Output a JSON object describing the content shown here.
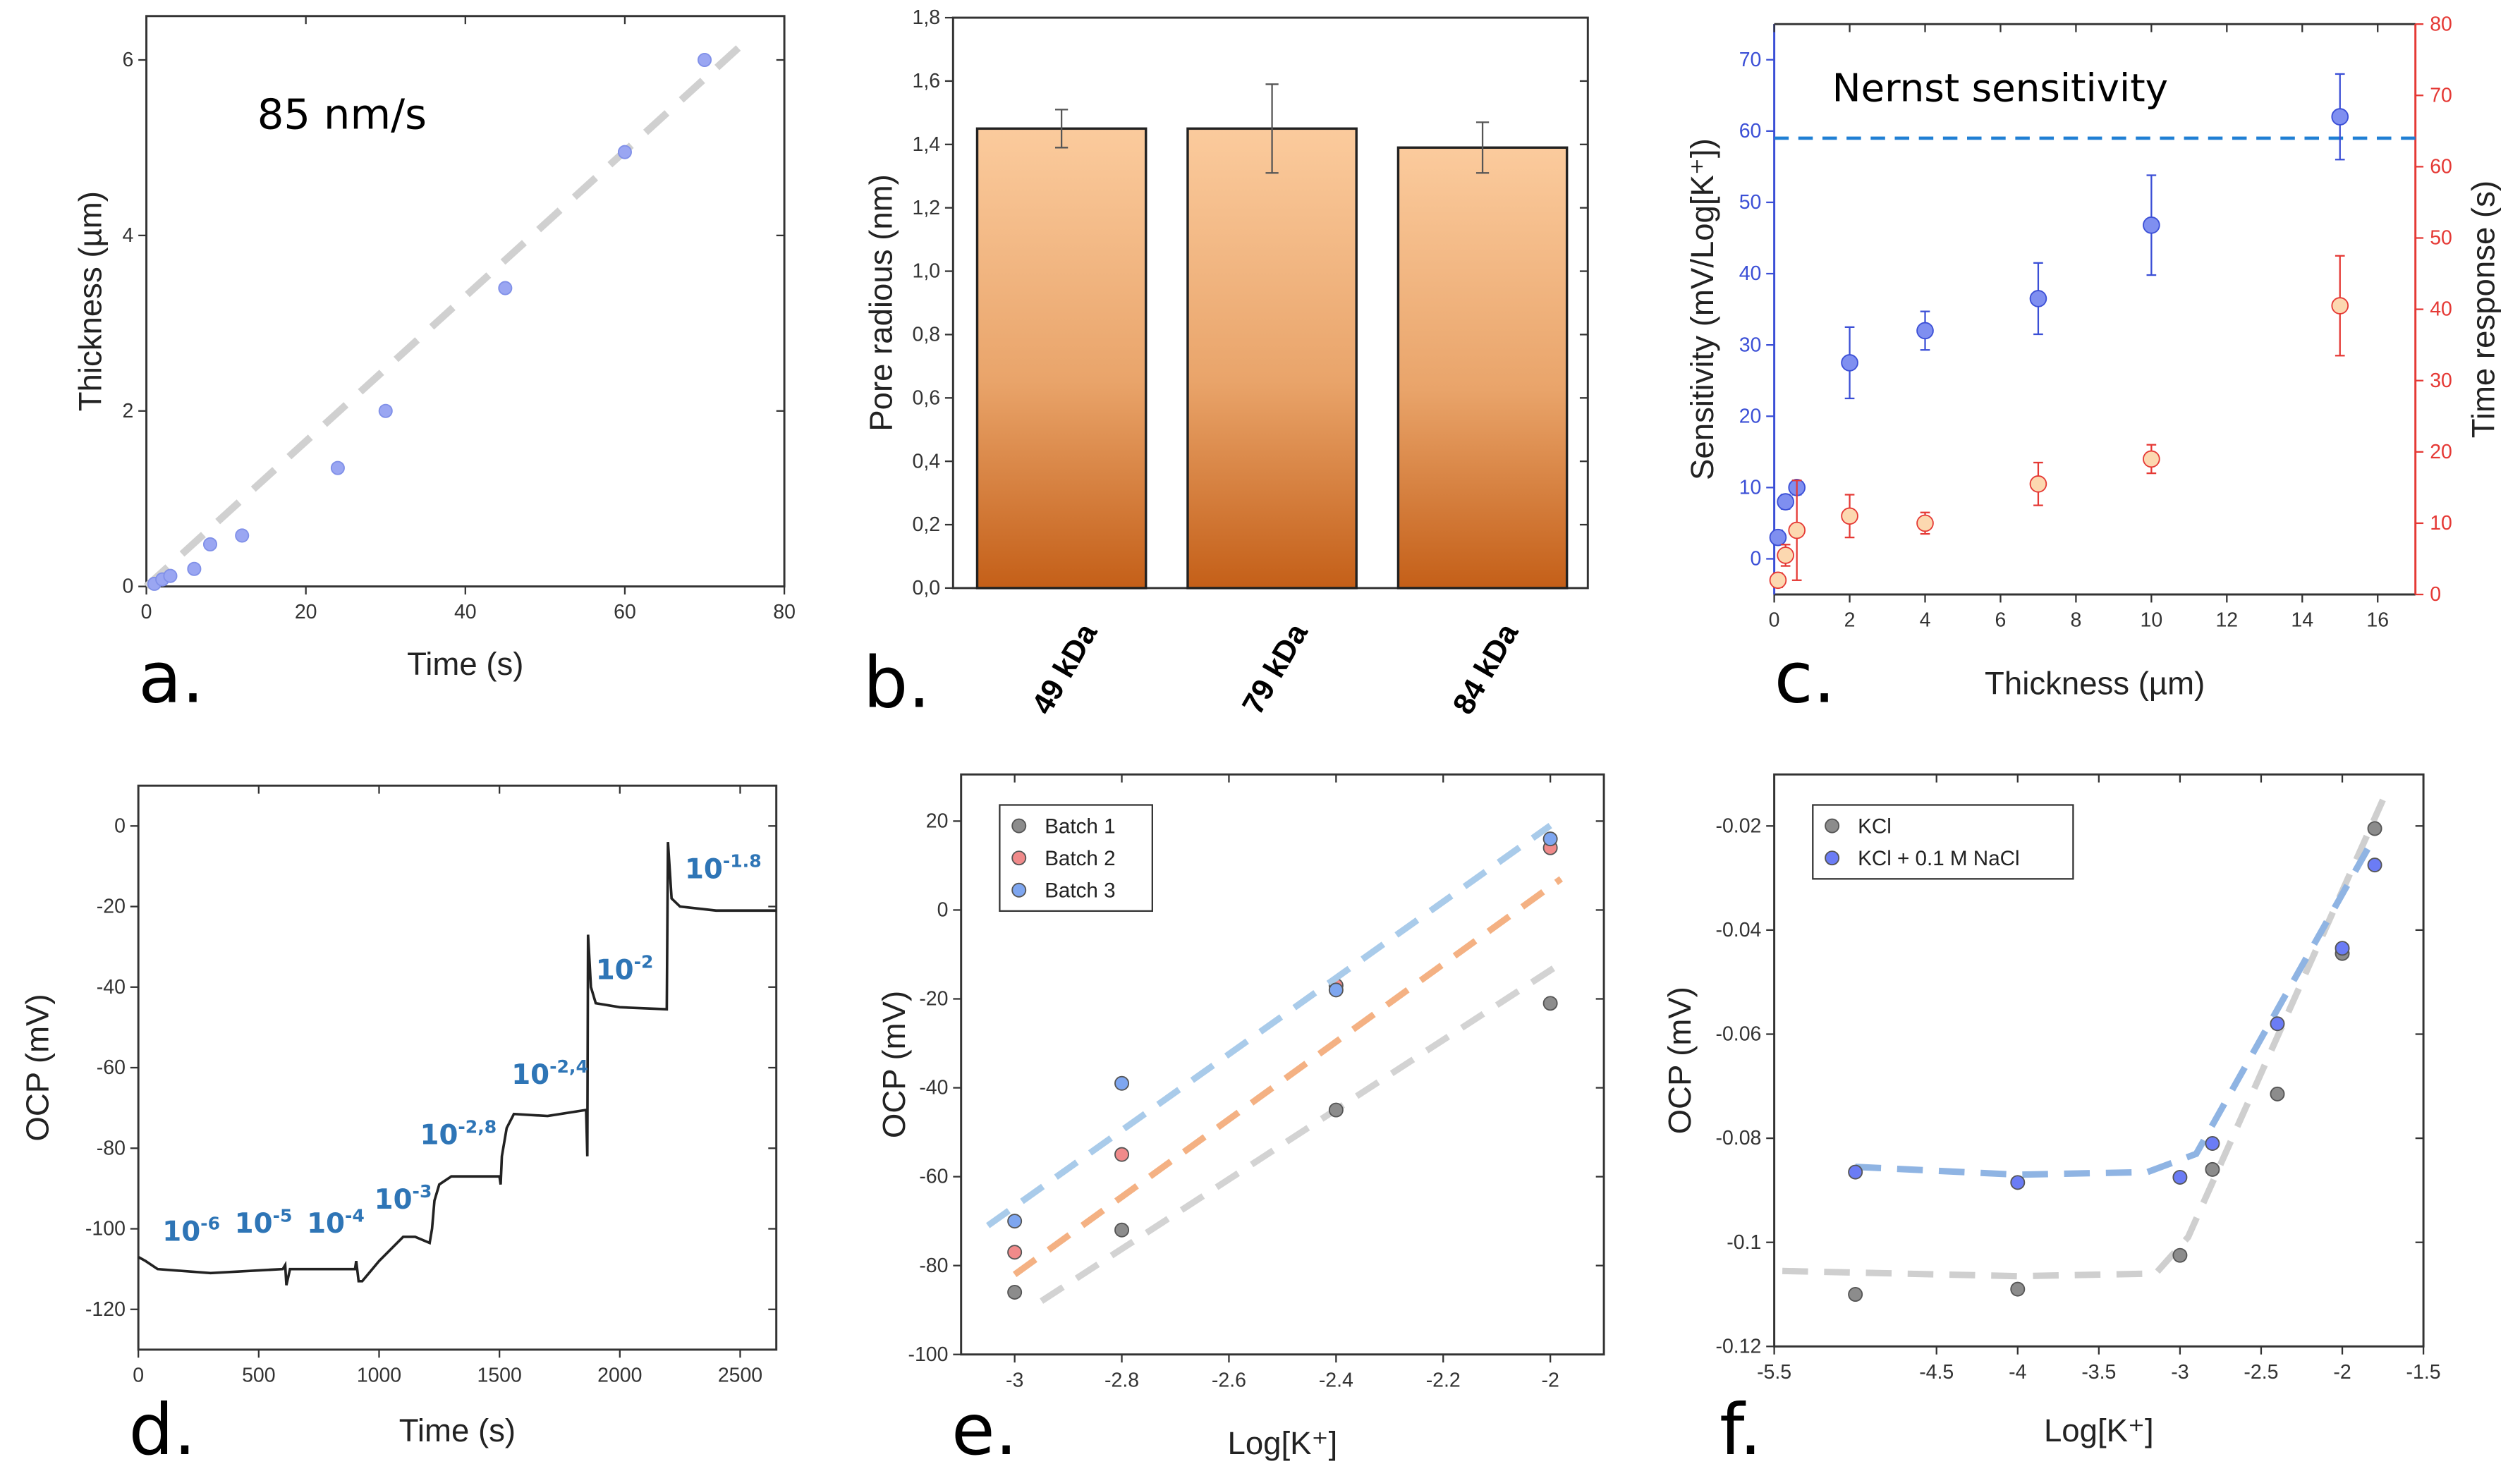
{
  "chart_data": [
    {
      "id": "a",
      "panel_letter": "a.",
      "type": "scatter",
      "xlabel": "Time (s)",
      "ylabel": "Thickness (µm)",
      "xlim": [
        0,
        80
      ],
      "ylim": [
        0,
        6.5
      ],
      "xticks": [
        0,
        20,
        40,
        60,
        80
      ],
      "yticks": [
        0,
        2,
        4,
        6
      ],
      "annotation": "85 nm/s",
      "points": [
        [
          1,
          0.03
        ],
        [
          2,
          0.08
        ],
        [
          3,
          0.12
        ],
        [
          6,
          0.2
        ],
        [
          8,
          0.48
        ],
        [
          12,
          0.58
        ],
        [
          24,
          1.35
        ],
        [
          30,
          2.0
        ],
        [
          45,
          3.4
        ],
        [
          60,
          4.95
        ],
        [
          70,
          6.0
        ]
      ],
      "fit_line": [
        [
          0,
          0
        ],
        [
          75,
          6.2
        ]
      ],
      "colors": {
        "points": "#9aa6f2",
        "fit": "#d0d0d0"
      }
    },
    {
      "id": "b",
      "panel_letter": "b.",
      "type": "bar",
      "ylabel": "Pore radious (nm)",
      "categories": [
        "49 kDa",
        "79 kDa",
        "84 kDa"
      ],
      "values": [
        1.45,
        1.45,
        1.39
      ],
      "errors": [
        0.06,
        0.14,
        0.08
      ],
      "ylim": [
        0,
        1.8
      ],
      "yticks": [
        "0,0",
        "0,2",
        "0,4",
        "0,6",
        "0,8",
        "1,0",
        "1,2",
        "1,4",
        "1,6",
        "1,8"
      ],
      "colors": {
        "bar_top": "#fbcb9d",
        "bar_bottom": "#c45f18"
      }
    },
    {
      "id": "c",
      "panel_letter": "c.",
      "type": "scatter",
      "xlabel": "Thickness (µm)",
      "ylabel": "Sensitivity (mV/Log[K⁺])",
      "ylabel_right": "Time response (s)",
      "xlim": [
        0,
        17
      ],
      "ylim": [
        -5,
        75
      ],
      "ylim_right": [
        0,
        80
      ],
      "xticks": [
        0,
        2,
        4,
        6,
        8,
        10,
        12,
        14,
        16
      ],
      "yticks": [
        0,
        10,
        20,
        30,
        40,
        50,
        60,
        70
      ],
      "yticks_right": [
        0,
        10,
        20,
        30,
        40,
        50,
        60,
        70,
        80
      ],
      "annotation": "Nernst sensitivity",
      "reference_line": 59,
      "series": [
        {
          "axis": "left",
          "points": [
            [
              0.1,
              3,
              1
            ],
            [
              0.3,
              8,
              1
            ],
            [
              0.6,
              10,
              1
            ],
            [
              2,
              27.5,
              5
            ],
            [
              4,
              32,
              2.7
            ],
            [
              7,
              36.5,
              5
            ],
            [
              10,
              46.8,
              7
            ],
            [
              15,
              62,
              6
            ]
          ]
        },
        {
          "axis": "right",
          "points": [
            [
              0.1,
              2,
              1
            ],
            [
              0.3,
              5.5,
              1.5
            ],
            [
              0.6,
              9,
              7
            ],
            [
              2,
              11,
              3
            ],
            [
              4,
              10,
              1.5
            ],
            [
              7,
              15.5,
              3
            ],
            [
              10,
              19,
              2
            ],
            [
              15,
              40.5,
              7
            ]
          ]
        }
      ],
      "colors": {
        "left": "#3b4fd6",
        "left_fill": "#7f8ff0",
        "right": "#e53935",
        "right_fill": "#fcd8b0",
        "reference": "#1f7fd4"
      }
    },
    {
      "id": "d",
      "panel_letter": "d.",
      "type": "line",
      "xlabel": "Time (s)",
      "ylabel": "OCP (mV)",
      "xlim": [
        0,
        2650
      ],
      "ylim": [
        -130,
        10
      ],
      "xticks": [
        0,
        500,
        1000,
        1500,
        2000,
        2500
      ],
      "yticks": [
        0,
        -20,
        -40,
        -60,
        -80,
        -100,
        -120
      ],
      "points": [
        [
          0,
          -107
        ],
        [
          30,
          -108
        ],
        [
          80,
          -110
        ],
        [
          300,
          -111
        ],
        [
          600,
          -110
        ],
        [
          610,
          -109
        ],
        [
          615,
          -114
        ],
        [
          630,
          -110
        ],
        [
          700,
          -110
        ],
        [
          900,
          -110
        ],
        [
          905,
          -108
        ],
        [
          915,
          -113
        ],
        [
          930,
          -113
        ],
        [
          1000,
          -108
        ],
        [
          1100,
          -102
        ],
        [
          1150,
          -102
        ],
        [
          1210,
          -103.5
        ],
        [
          1220,
          -100
        ],
        [
          1230,
          -93
        ],
        [
          1250,
          -89
        ],
        [
          1300,
          -87
        ],
        [
          1500,
          -87
        ],
        [
          1505,
          -89
        ],
        [
          1510,
          -82
        ],
        [
          1530,
          -75
        ],
        [
          1560,
          -71.5
        ],
        [
          1700,
          -72
        ],
        [
          1860,
          -70.5
        ],
        [
          1865,
          -82
        ],
        [
          1868,
          -27
        ],
        [
          1880,
          -40
        ],
        [
          1900,
          -44
        ],
        [
          2000,
          -45
        ],
        [
          2195,
          -45.5
        ],
        [
          2200,
          -4
        ],
        [
          2215,
          -18
        ],
        [
          2250,
          -20
        ],
        [
          2400,
          -21
        ],
        [
          2650,
          -21
        ]
      ],
      "concentration_labels": [
        {
          "base": "10",
          "exp": "-6",
          "t": 100,
          "v": -103
        },
        {
          "base": "10",
          "exp": "-5",
          "t": 400,
          "v": -101
        },
        {
          "base": "10",
          "exp": "-4",
          "t": 700,
          "v": -101
        },
        {
          "base": "10",
          "exp": "-3",
          "t": 980,
          "v": -95
        },
        {
          "base": "10",
          "exp": "-2,8",
          "t": 1170,
          "v": -79
        },
        {
          "base": "10",
          "exp": "-2,4",
          "t": 1550,
          "v": -64
        },
        {
          "base": "10",
          "exp": "-2",
          "t": 1900,
          "v": -38
        },
        {
          "base": "10",
          "exp": "-1.8",
          "t": 2270,
          "v": -13
        }
      ],
      "colors": {
        "line": "#222222",
        "labels": "#2e75b6"
      }
    },
    {
      "id": "e",
      "panel_letter": "e.",
      "type": "scatter",
      "xlabel": "Log[K⁺]",
      "ylabel": "OCP (mV)",
      "xlim": [
        -3.1,
        -1.9
      ],
      "ylim": [
        -100,
        30.5
      ],
      "xticks": [
        -3,
        -2.8,
        -2.6,
        -2.4,
        -2.2,
        -2
      ],
      "yticks": [
        20,
        0,
        -20,
        -40,
        -60,
        -80,
        -100
      ],
      "legend": "top-left",
      "series": [
        {
          "name": "Batch 1",
          "color": "#8c8c8c",
          "fit_color": "#d3d3d3",
          "points": [
            [
              -3,
              -86
            ],
            [
              -2.8,
              -72
            ],
            [
              -2.4,
              -45
            ],
            [
              -2,
              -21
            ]
          ],
          "fit": [
            [
              -2.95,
              -88
            ],
            [
              -1.98,
              -12
            ]
          ]
        },
        {
          "name": "Batch 2",
          "color": "#f08a8a",
          "fit_color": "#f4b183",
          "points": [
            [
              -3,
              -77
            ],
            [
              -2.8,
              -55
            ],
            [
              -2.4,
              -17
            ],
            [
              -2,
              14
            ]
          ],
          "fit": [
            [
              -3,
              -82
            ],
            [
              -1.98,
              7
            ]
          ]
        },
        {
          "name": "Batch 3",
          "color": "#7ea6f0",
          "fit_color": "#a9cbea",
          "points": [
            [
              -3,
              -70
            ],
            [
              -2.8,
              -39
            ],
            [
              -2.4,
              -18
            ],
            [
              -2,
              16
            ]
          ],
          "fit": [
            [
              -3.05,
              -71
            ],
            [
              -2,
              19
            ]
          ]
        }
      ]
    },
    {
      "id": "f",
      "panel_letter": "f.",
      "type": "scatter",
      "xlabel": "Log[K⁺]",
      "ylabel": "OCP (mV)",
      "xlim": [
        -5.5,
        -1.5
      ],
      "ylim": [
        -0.12,
        -0.0101
      ],
      "xticks": [
        -5.5,
        -4.5,
        -4,
        -3.5,
        -3,
        -2.5,
        -2,
        -1.5
      ],
      "yticks": [
        -0.02,
        -0.04,
        -0.06,
        -0.08,
        -0.1,
        -0.12
      ],
      "legend": "top-left",
      "series": [
        {
          "name": "KCl",
          "color": "#8c8c8c",
          "fit_color": "#cfcfcf",
          "points": [
            [
              -5,
              -0.11
            ],
            [
              -4,
              -0.109
            ],
            [
              -3,
              -0.1025
            ],
            [
              -2.8,
              -0.086
            ],
            [
              -2.4,
              -0.0715
            ],
            [
              -2,
              -0.0445
            ],
            [
              -1.8,
              -0.0205
            ]
          ],
          "fit": [
            [
              -5.45,
              -0.1055
            ],
            [
              -4,
              -0.1065
            ],
            [
              -3.15,
              -0.106
            ],
            [
              -2.95,
              -0.099
            ],
            [
              -1.75,
              -0.015
            ]
          ]
        },
        {
          "name": "KCl + 0.1 M NaCl",
          "color": "#6b7cf5",
          "fit_color": "#8fb4e3",
          "points": [
            [
              -5,
              -0.0865
            ],
            [
              -4,
              -0.0885
            ],
            [
              -3,
              -0.0875
            ],
            [
              -2.8,
              -0.081
            ],
            [
              -2.4,
              -0.058
            ],
            [
              -2,
              -0.0435
            ],
            [
              -1.8,
              -0.0275
            ]
          ],
          "fit": [
            [
              -5,
              -0.0855
            ],
            [
              -4,
              -0.087
            ],
            [
              -3.2,
              -0.0865
            ],
            [
              -2.9,
              -0.083
            ],
            [
              -1.8,
              -0.022
            ]
          ]
        }
      ]
    }
  ]
}
